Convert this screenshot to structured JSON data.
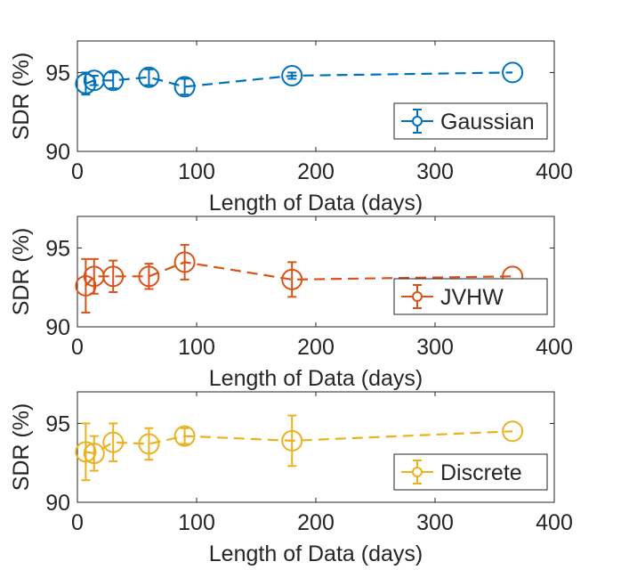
{
  "chart_data": [
    {
      "type": "line",
      "series_name": "Gaussian",
      "color": "#0072BD",
      "xlabel": "Length of Data (days)",
      "ylabel": "SDR (%)",
      "xlim": [
        0,
        400
      ],
      "ylim": [
        90,
        97
      ],
      "xticks": [
        0,
        100,
        200,
        300,
        400
      ],
      "yticks": [
        90,
        95
      ],
      "legend": "bottom-right",
      "x": [
        7,
        14,
        30,
        60,
        90,
        180,
        365
      ],
      "y": [
        94.3,
        94.5,
        94.5,
        94.7,
        94.1,
        94.8,
        95.0
      ],
      "err": [
        0.7,
        0.3,
        0.5,
        0.5,
        0.5,
        0.2,
        0.0
      ]
    },
    {
      "type": "line",
      "series_name": "JVHW",
      "color": "#D95319",
      "xlabel": "Length of Data (days)",
      "ylabel": "SDR (%)",
      "xlim": [
        0,
        400
      ],
      "ylim": [
        90,
        97
      ],
      "xticks": [
        0,
        100,
        200,
        300,
        400
      ],
      "yticks": [
        90,
        95
      ],
      "legend": "bottom-right",
      "x": [
        7,
        14,
        30,
        60,
        90,
        180,
        365
      ],
      "y": [
        92.6,
        93.2,
        93.2,
        93.2,
        94.1,
        93.0,
        93.2
      ],
      "err": [
        1.7,
        1.1,
        1.0,
        0.8,
        1.1,
        1.1,
        0.0
      ]
    },
    {
      "type": "line",
      "series_name": "Discrete",
      "color": "#EDB120",
      "xlabel": "Length of Data (days)",
      "ylabel": "SDR (%)",
      "xlim": [
        0,
        400
      ],
      "ylim": [
        90,
        97
      ],
      "xticks": [
        0,
        100,
        200,
        300,
        400
      ],
      "yticks": [
        90,
        95
      ],
      "legend": "bottom-right",
      "x": [
        7,
        14,
        30,
        60,
        90,
        180,
        365
      ],
      "y": [
        93.2,
        93.1,
        93.8,
        93.7,
        94.2,
        93.9,
        94.5
      ],
      "err": [
        1.8,
        1.1,
        1.2,
        1.0,
        0.5,
        1.6,
        0.0
      ]
    }
  ]
}
